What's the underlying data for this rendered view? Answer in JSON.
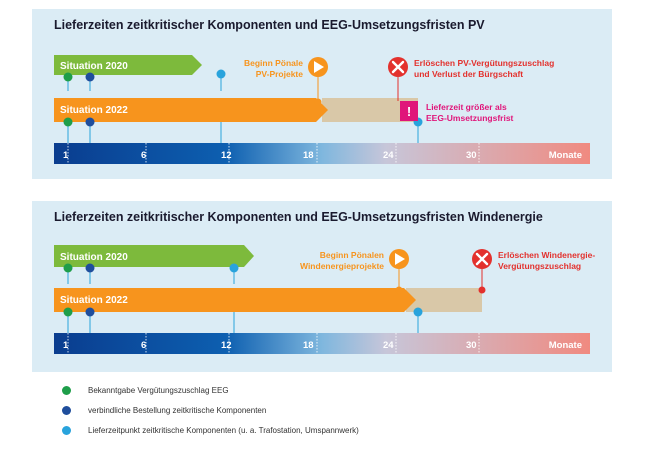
{
  "panel_pv": {
    "title": "Lieferzeiten zeitkritischer Komponenten und EEG-Umsetzungsfristen PV",
    "row1_label": "Situation 2020",
    "row2_label": "Situation 2022",
    "annot_start_penalty": [
      "Beginn Pönale",
      "PV-Projekte"
    ],
    "annot_expiry": [
      "Erlöschen PV-Vergütungszuschlag",
      "und Verlust der Bürgschaft"
    ],
    "annot_warning": [
      "Lieferzeit größer als",
      "EEG-Umsetzungsfrist"
    ],
    "axis_ticks": [
      "1",
      "6",
      "12",
      "18",
      "24",
      "30"
    ],
    "axis_unit": "Monate"
  },
  "panel_wind": {
    "title": "Lieferzeiten zeitkritischer Komponenten und EEG-Umsetzungsfristen Windenergie",
    "row1_label": "Situation 2020",
    "row2_label": "Situation 2022",
    "annot_start_penalty": [
      "Beginn Pönalen",
      "Windenergieprojekte"
    ],
    "annot_expiry": [
      "Erlöschen Windenergie-",
      "Vergütungszuschlag"
    ],
    "axis_ticks": [
      "1",
      "6",
      "12",
      "18",
      "24",
      "30"
    ],
    "axis_unit": "Monate"
  },
  "legend": [
    {
      "label": "Bekanntgabe Vergütungszuschlag EEG",
      "color": "#1e9e4a"
    },
    {
      "label": "verbindliche Bestellung zeitkritische Komponenten",
      "color": "#1f4e9c"
    },
    {
      "label": "Lieferzeitpunkt zeitkritische Komponenten (u. a. Trafostation, Umspannwerk)",
      "color": "#29a3dc"
    }
  ],
  "colors": {
    "green": "#7dba3c",
    "orange": "#f7941d",
    "beige": "#d9c8a8",
    "red": "#e3312d",
    "magenta": "#e0157a",
    "navy": "#0a3d8f",
    "salmon": "#f08a80"
  }
}
